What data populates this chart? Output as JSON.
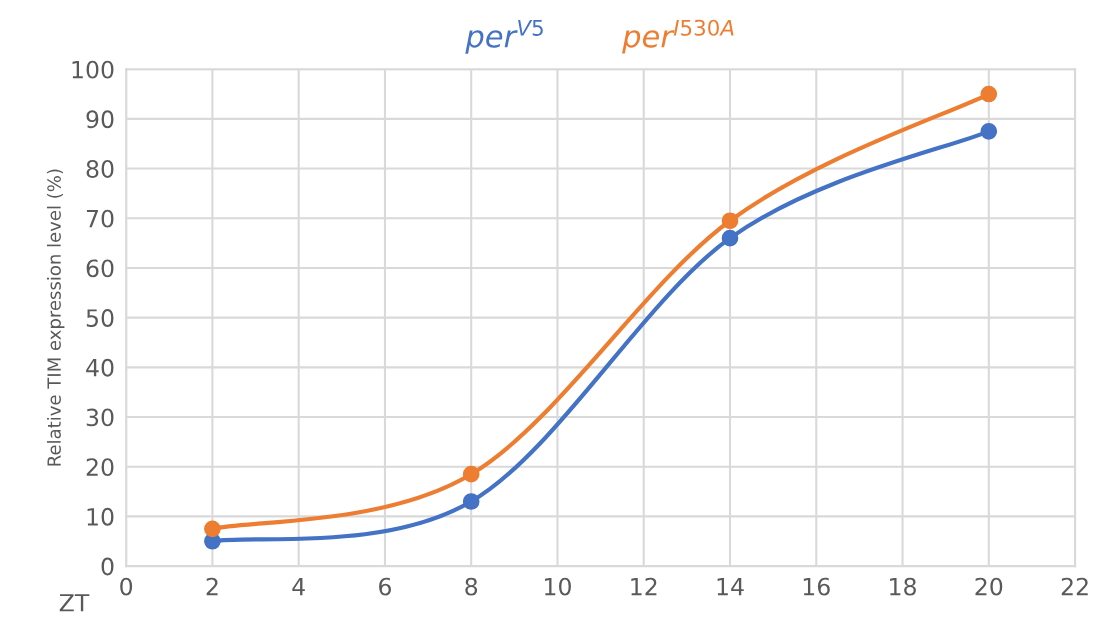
{
  "chart_data": {
    "type": "line",
    "xlabel": "ZT",
    "ylabel": "Relative TIM expression level (%)",
    "x": [
      2,
      8,
      14,
      20
    ],
    "series": [
      {
        "name": "per$^{V5}$",
        "color": "#4472c4",
        "values": [
          5,
          13,
          66,
          87.5
        ]
      },
      {
        "name": "per$^{I530A}$",
        "color": "#ed7d31",
        "values": [
          7.5,
          18.5,
          69.5,
          95
        ]
      }
    ],
    "xlim": [
      0,
      22
    ],
    "xticks": [
      0,
      2,
      4,
      6,
      8,
      10,
      12,
      14,
      16,
      18,
      20,
      22
    ],
    "ylim": [
      0,
      100
    ],
    "yticks": [
      0,
      10,
      20,
      30,
      40,
      50,
      60,
      70,
      80,
      90,
      100
    ],
    "grid": true,
    "legend": "top",
    "marker": "circle",
    "line_style": "solid"
  }
}
